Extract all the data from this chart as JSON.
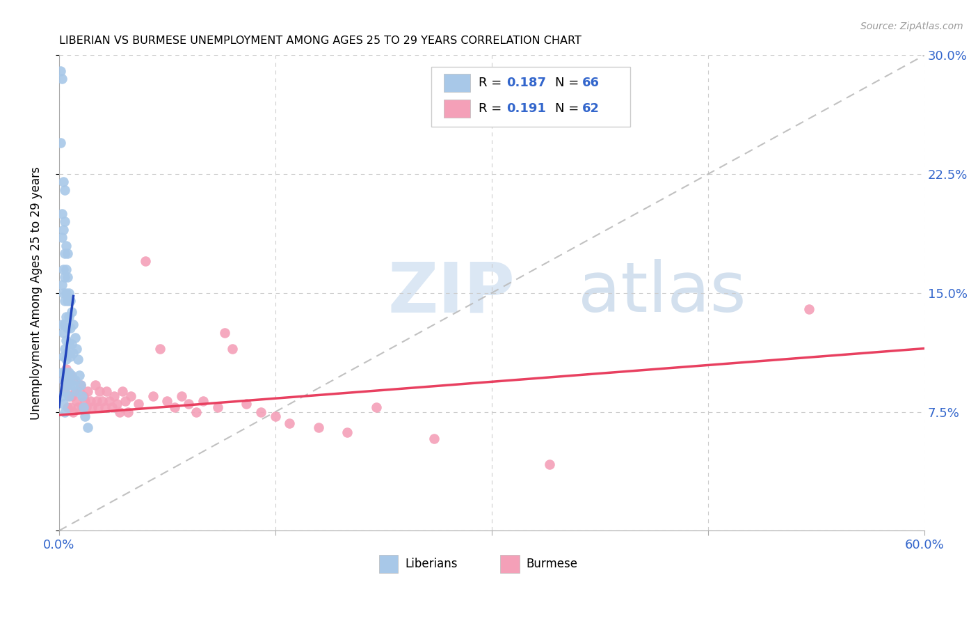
{
  "title": "LIBERIAN VS BURMESE UNEMPLOYMENT AMONG AGES 25 TO 29 YEARS CORRELATION CHART",
  "source": "Source: ZipAtlas.com",
  "ylabel": "Unemployment Among Ages 25 to 29 years",
  "xlim": [
    0.0,
    0.6
  ],
  "ylim": [
    0.0,
    0.3
  ],
  "xticks": [
    0.0,
    0.15,
    0.3,
    0.45,
    0.6
  ],
  "xtick_labels": [
    "0.0%",
    "",
    "",
    "",
    "60.0%"
  ],
  "ytick_labels_right": [
    "",
    "7.5%",
    "15.0%",
    "22.5%",
    "30.0%"
  ],
  "yticks": [
    0.0,
    0.075,
    0.15,
    0.225,
    0.3
  ],
  "liberian_color": "#a8c8e8",
  "burmese_color": "#f4a0b8",
  "liberian_line_color": "#2244bb",
  "burmese_line_color": "#e84060",
  "diagonal_color": "#bbbbbb",
  "watermark_text": "ZIPatlas",
  "liberian_x": [
    0.001,
    0.001,
    0.002,
    0.002,
    0.002,
    0.002,
    0.002,
    0.002,
    0.002,
    0.003,
    0.003,
    0.003,
    0.003,
    0.003,
    0.003,
    0.003,
    0.003,
    0.004,
    0.004,
    0.004,
    0.004,
    0.004,
    0.004,
    0.004,
    0.004,
    0.004,
    0.004,
    0.005,
    0.005,
    0.005,
    0.005,
    0.005,
    0.005,
    0.005,
    0.006,
    0.006,
    0.006,
    0.006,
    0.006,
    0.006,
    0.007,
    0.007,
    0.007,
    0.007,
    0.007,
    0.008,
    0.008,
    0.008,
    0.008,
    0.009,
    0.009,
    0.009,
    0.01,
    0.01,
    0.01,
    0.011,
    0.011,
    0.012,
    0.012,
    0.013,
    0.014,
    0.015,
    0.016,
    0.017,
    0.018,
    0.02
  ],
  "liberian_y": [
    0.29,
    0.245,
    0.285,
    0.2,
    0.185,
    0.155,
    0.13,
    0.1,
    0.085,
    0.22,
    0.19,
    0.165,
    0.15,
    0.125,
    0.11,
    0.095,
    0.08,
    0.215,
    0.195,
    0.175,
    0.16,
    0.145,
    0.13,
    0.115,
    0.1,
    0.088,
    0.075,
    0.18,
    0.165,
    0.15,
    0.135,
    0.12,
    0.108,
    0.092,
    0.175,
    0.16,
    0.145,
    0.128,
    0.112,
    0.095,
    0.15,
    0.135,
    0.118,
    0.1,
    0.085,
    0.145,
    0.128,
    0.11,
    0.092,
    0.138,
    0.118,
    0.098,
    0.13,
    0.112,
    0.092,
    0.122,
    0.095,
    0.115,
    0.088,
    0.108,
    0.098,
    0.092,
    0.085,
    0.078,
    0.072,
    0.065
  ],
  "burmese_x": [
    0.003,
    0.004,
    0.005,
    0.006,
    0.006,
    0.007,
    0.008,
    0.008,
    0.009,
    0.01,
    0.01,
    0.011,
    0.012,
    0.013,
    0.014,
    0.015,
    0.016,
    0.017,
    0.018,
    0.019,
    0.02,
    0.022,
    0.023,
    0.025,
    0.026,
    0.027,
    0.028,
    0.03,
    0.032,
    0.033,
    0.035,
    0.037,
    0.038,
    0.04,
    0.042,
    0.044,
    0.046,
    0.048,
    0.05,
    0.055,
    0.06,
    0.065,
    0.07,
    0.075,
    0.08,
    0.085,
    0.09,
    0.095,
    0.1,
    0.11,
    0.115,
    0.12,
    0.13,
    0.14,
    0.15,
    0.16,
    0.18,
    0.2,
    0.22,
    0.26,
    0.34,
    0.52
  ],
  "burmese_y": [
    0.095,
    0.088,
    0.102,
    0.092,
    0.078,
    0.085,
    0.098,
    0.078,
    0.085,
    0.095,
    0.075,
    0.088,
    0.082,
    0.078,
    0.088,
    0.092,
    0.078,
    0.085,
    0.082,
    0.078,
    0.088,
    0.082,
    0.078,
    0.092,
    0.082,
    0.078,
    0.088,
    0.082,
    0.078,
    0.088,
    0.082,
    0.078,
    0.085,
    0.08,
    0.075,
    0.088,
    0.082,
    0.075,
    0.085,
    0.08,
    0.17,
    0.085,
    0.115,
    0.082,
    0.078,
    0.085,
    0.08,
    0.075,
    0.082,
    0.078,
    0.125,
    0.115,
    0.08,
    0.075,
    0.072,
    0.068,
    0.065,
    0.062,
    0.078,
    0.058,
    0.042,
    0.14
  ],
  "lib_line_x0": 0.0,
  "lib_line_x1": 0.01,
  "lib_line_y0": 0.078,
  "lib_line_y1": 0.148,
  "bur_line_x0": 0.0,
  "bur_line_x1": 0.6,
  "bur_line_y0": 0.073,
  "bur_line_y1": 0.115
}
